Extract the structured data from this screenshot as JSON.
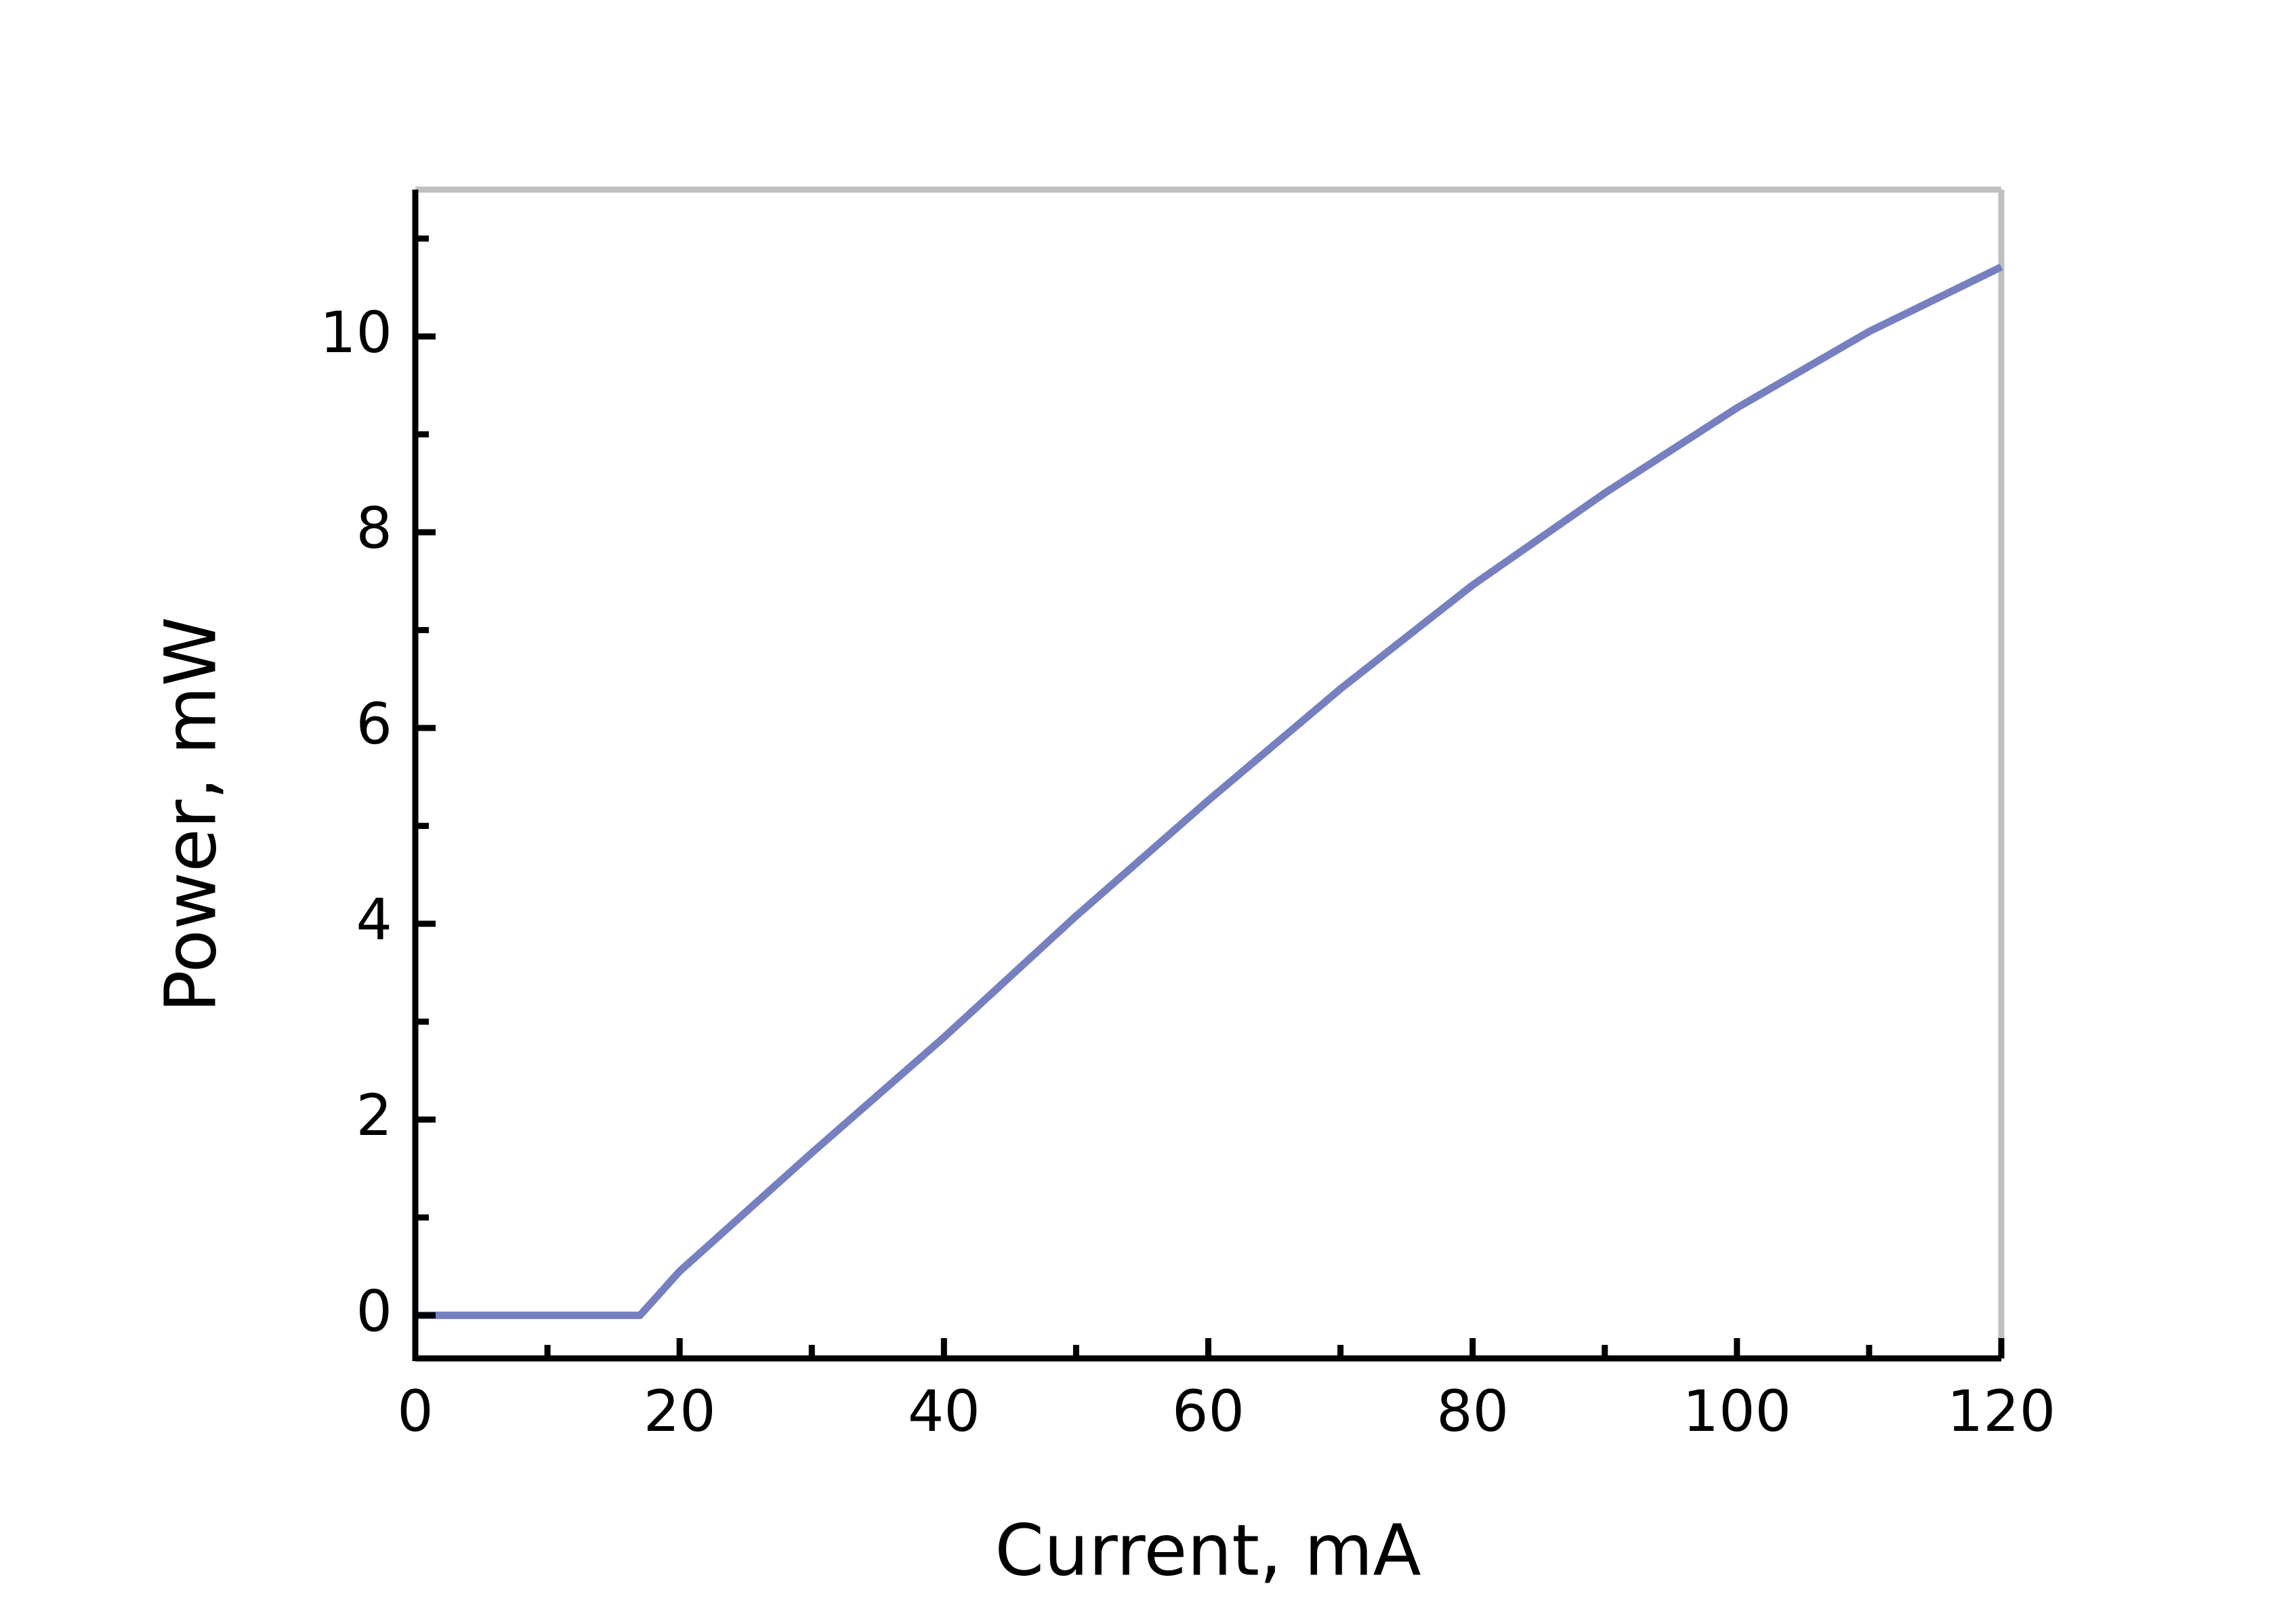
{
  "chart_data": {
    "type": "line",
    "x_label": "Current, mA",
    "y_label": "Power, mW",
    "series": [
      {
        "color": "#7680c0",
        "x": [
          0,
          17,
          20,
          30,
          40,
          50,
          60,
          70,
          80,
          90,
          100,
          110,
          120
        ],
        "values": [
          0,
          0,
          0.45,
          1.66,
          2.84,
          4.08,
          5.26,
          6.4,
          7.46,
          8.4,
          9.27,
          10.05,
          10.71
        ]
      }
    ],
    "xlim": [
      0,
      120
    ],
    "ylim": [
      -0.44,
      11.5
    ],
    "xticks": [
      0,
      20,
      40,
      60,
      80,
      100,
      120
    ],
    "yticks": [
      0,
      2,
      4,
      6,
      8,
      10
    ],
    "xminorticks": [
      10,
      30,
      50,
      70,
      90,
      110
    ],
    "yminorticks": [
      1,
      3,
      5,
      7,
      9,
      11
    ],
    "grid": false
  }
}
